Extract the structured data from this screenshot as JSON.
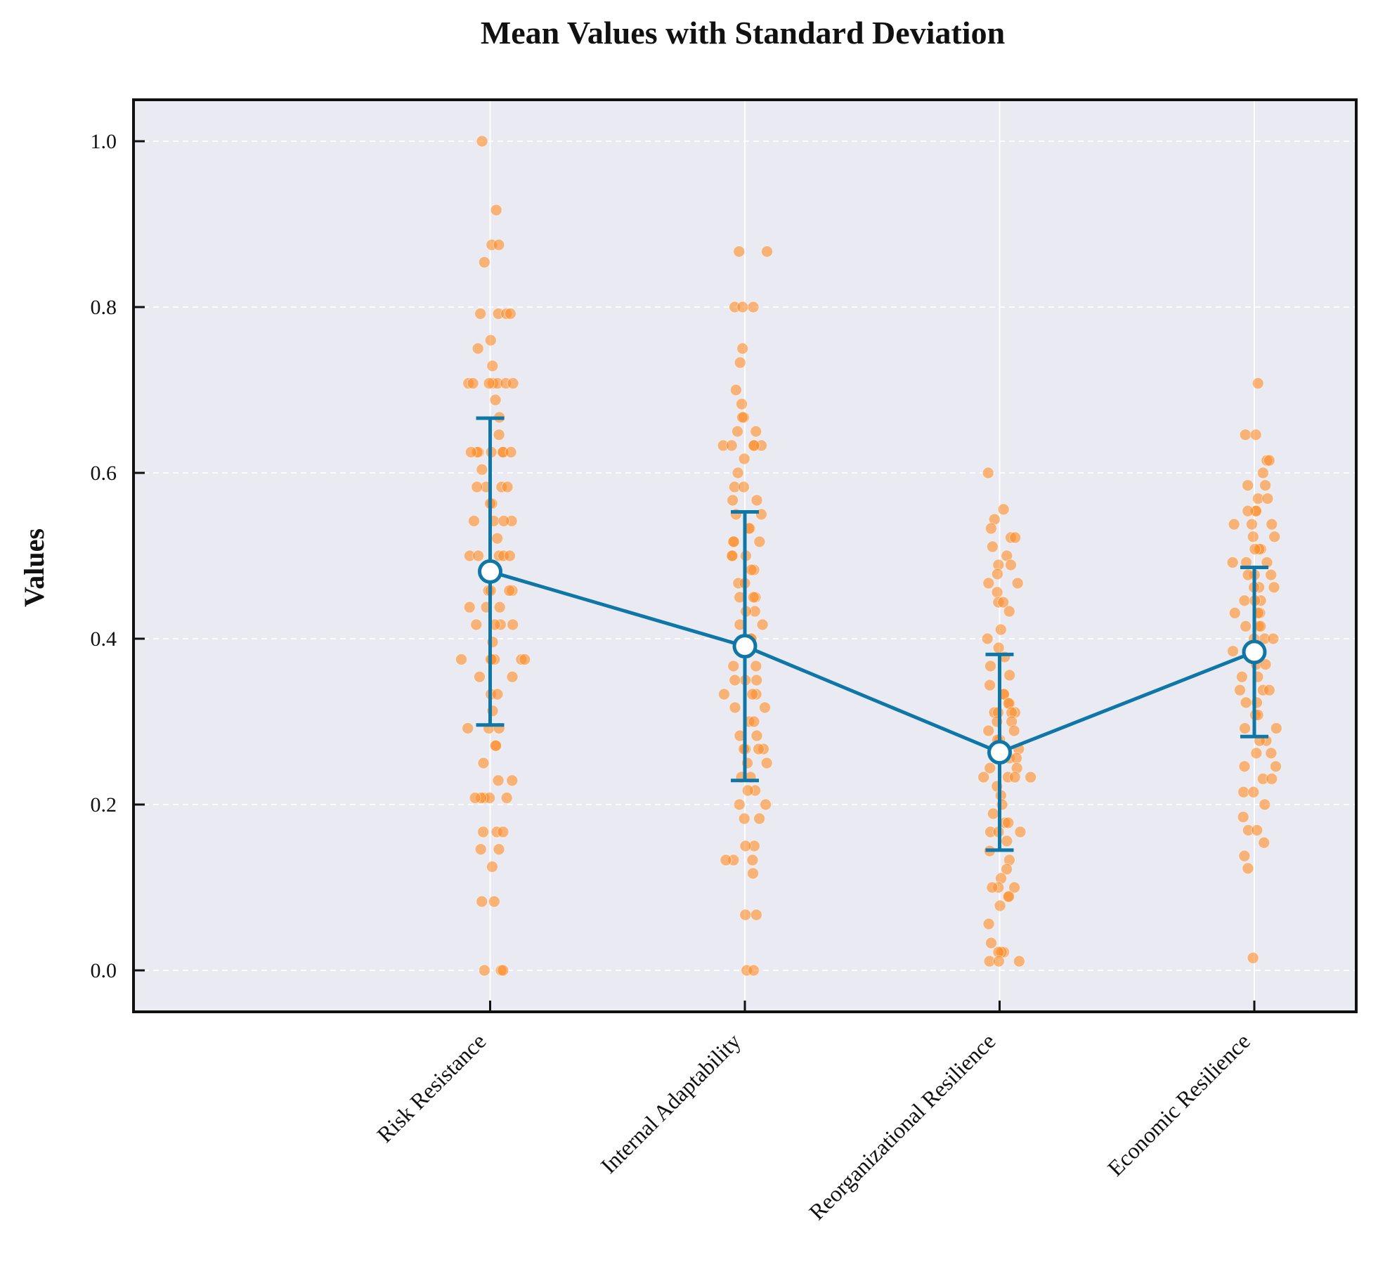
{
  "chart_data": {
    "type": "scatter",
    "title": "Mean Values with Standard Deviation",
    "xlabel": "",
    "ylabel": "Values",
    "ylim": [
      -0.05,
      1.05
    ],
    "grid": true,
    "y_ticks": [
      0.0,
      0.2,
      0.4,
      0.6,
      0.8,
      1.0
    ],
    "y_tick_labels": [
      "0.0",
      "0.2",
      "0.4",
      "0.6",
      "0.8",
      "1.0"
    ],
    "categories": [
      "Risk Resistance",
      "Internal Adaptability",
      "Reorganizational Resilience",
      "Economic Resilience"
    ],
    "series": [
      {
        "name": "Mean",
        "values": [
          0.481,
          0.391,
          0.263,
          0.384
        ],
        "std": [
          0.185,
          0.162,
          0.118,
          0.102
        ]
      }
    ],
    "points": [
      [
        1.0,
        0.917,
        0.875,
        0.875,
        0.854,
        0.792,
        0.792,
        0.792,
        0.792,
        0.76,
        0.75,
        0.729,
        0.708,
        0.708,
        0.708,
        0.708,
        0.708,
        0.708,
        0.708,
        0.688,
        0.667,
        0.646,
        0.625,
        0.625,
        0.625,
        0.625,
        0.625,
        0.625,
        0.625,
        0.604,
        0.583,
        0.583,
        0.583,
        0.583,
        0.563,
        0.563,
        0.542,
        0.542,
        0.542,
        0.542,
        0.521,
        0.5,
        0.5,
        0.5,
        0.5,
        0.5,
        0.479,
        0.479,
        0.458,
        0.458,
        0.458,
        0.458,
        0.438,
        0.438,
        0.438,
        0.417,
        0.417,
        0.417,
        0.417,
        0.396,
        0.375,
        0.375,
        0.375,
        0.375,
        0.375,
        0.375,
        0.354,
        0.354,
        0.333,
        0.333,
        0.313,
        0.292,
        0.292,
        0.292,
        0.271,
        0.271,
        0.25,
        0.229,
        0.229,
        0.208,
        0.208,
        0.208,
        0.208,
        0.208,
        0.167,
        0.167,
        0.167,
        0.146,
        0.146,
        0.125,
        0.083,
        0.083,
        0.0,
        0.0,
        0.0
      ],
      [
        0.867,
        0.867,
        0.8,
        0.8,
        0.8,
        0.75,
        0.733,
        0.7,
        0.683,
        0.667,
        0.667,
        0.65,
        0.65,
        0.633,
        0.633,
        0.633,
        0.633,
        0.633,
        0.617,
        0.6,
        0.583,
        0.583,
        0.567,
        0.567,
        0.55,
        0.55,
        0.533,
        0.533,
        0.517,
        0.517,
        0.517,
        0.5,
        0.5,
        0.5,
        0.483,
        0.483,
        0.467,
        0.467,
        0.45,
        0.45,
        0.45,
        0.433,
        0.433,
        0.417,
        0.417,
        0.4,
        0.4,
        0.383,
        0.383,
        0.367,
        0.367,
        0.35,
        0.35,
        0.35,
        0.333,
        0.333,
        0.333,
        0.317,
        0.317,
        0.3,
        0.3,
        0.283,
        0.283,
        0.267,
        0.267,
        0.267,
        0.267,
        0.25,
        0.25,
        0.233,
        0.233,
        0.217,
        0.217,
        0.2,
        0.2,
        0.183,
        0.183,
        0.15,
        0.15,
        0.133,
        0.133,
        0.133,
        0.117,
        0.067,
        0.067,
        0.0,
        0.0
      ],
      [
        0.6,
        0.556,
        0.544,
        0.533,
        0.522,
        0.522,
        0.511,
        0.5,
        0.489,
        0.489,
        0.478,
        0.467,
        0.467,
        0.456,
        0.444,
        0.444,
        0.433,
        0.411,
        0.4,
        0.389,
        0.378,
        0.367,
        0.356,
        0.344,
        0.333,
        0.333,
        0.322,
        0.322,
        0.311,
        0.311,
        0.311,
        0.311,
        0.3,
        0.3,
        0.289,
        0.289,
        0.278,
        0.278,
        0.267,
        0.267,
        0.256,
        0.256,
        0.244,
        0.244,
        0.233,
        0.233,
        0.233,
        0.233,
        0.222,
        0.211,
        0.2,
        0.189,
        0.178,
        0.178,
        0.167,
        0.167,
        0.167,
        0.156,
        0.144,
        0.133,
        0.122,
        0.111,
        0.1,
        0.1,
        0.1,
        0.089,
        0.089,
        0.078,
        0.056,
        0.033,
        0.022,
        0.022,
        0.022,
        0.011,
        0.011,
        0.011
      ],
      [
        0.708,
        0.646,
        0.646,
        0.615,
        0.615,
        0.6,
        0.585,
        0.585,
        0.569,
        0.569,
        0.554,
        0.554,
        0.554,
        0.538,
        0.538,
        0.538,
        0.523,
        0.523,
        0.508,
        0.508,
        0.508,
        0.492,
        0.492,
        0.492,
        0.477,
        0.477,
        0.477,
        0.462,
        0.462,
        0.462,
        0.446,
        0.446,
        0.446,
        0.431,
        0.431,
        0.431,
        0.415,
        0.415,
        0.415,
        0.4,
        0.4,
        0.4,
        0.385,
        0.385,
        0.385,
        0.369,
        0.369,
        0.354,
        0.354,
        0.338,
        0.338,
        0.338,
        0.323,
        0.323,
        0.308,
        0.308,
        0.292,
        0.292,
        0.277,
        0.277,
        0.262,
        0.262,
        0.246,
        0.246,
        0.231,
        0.231,
        0.215,
        0.215,
        0.2,
        0.185,
        0.169,
        0.169,
        0.154,
        0.138,
        0.123,
        0.015
      ]
    ],
    "colors": {
      "mean_line": "#0f76a8",
      "points": "#ff8c26",
      "plot_background": "#eaeaf2",
      "grid": "#ffffff",
      "frame": "#111111"
    }
  }
}
